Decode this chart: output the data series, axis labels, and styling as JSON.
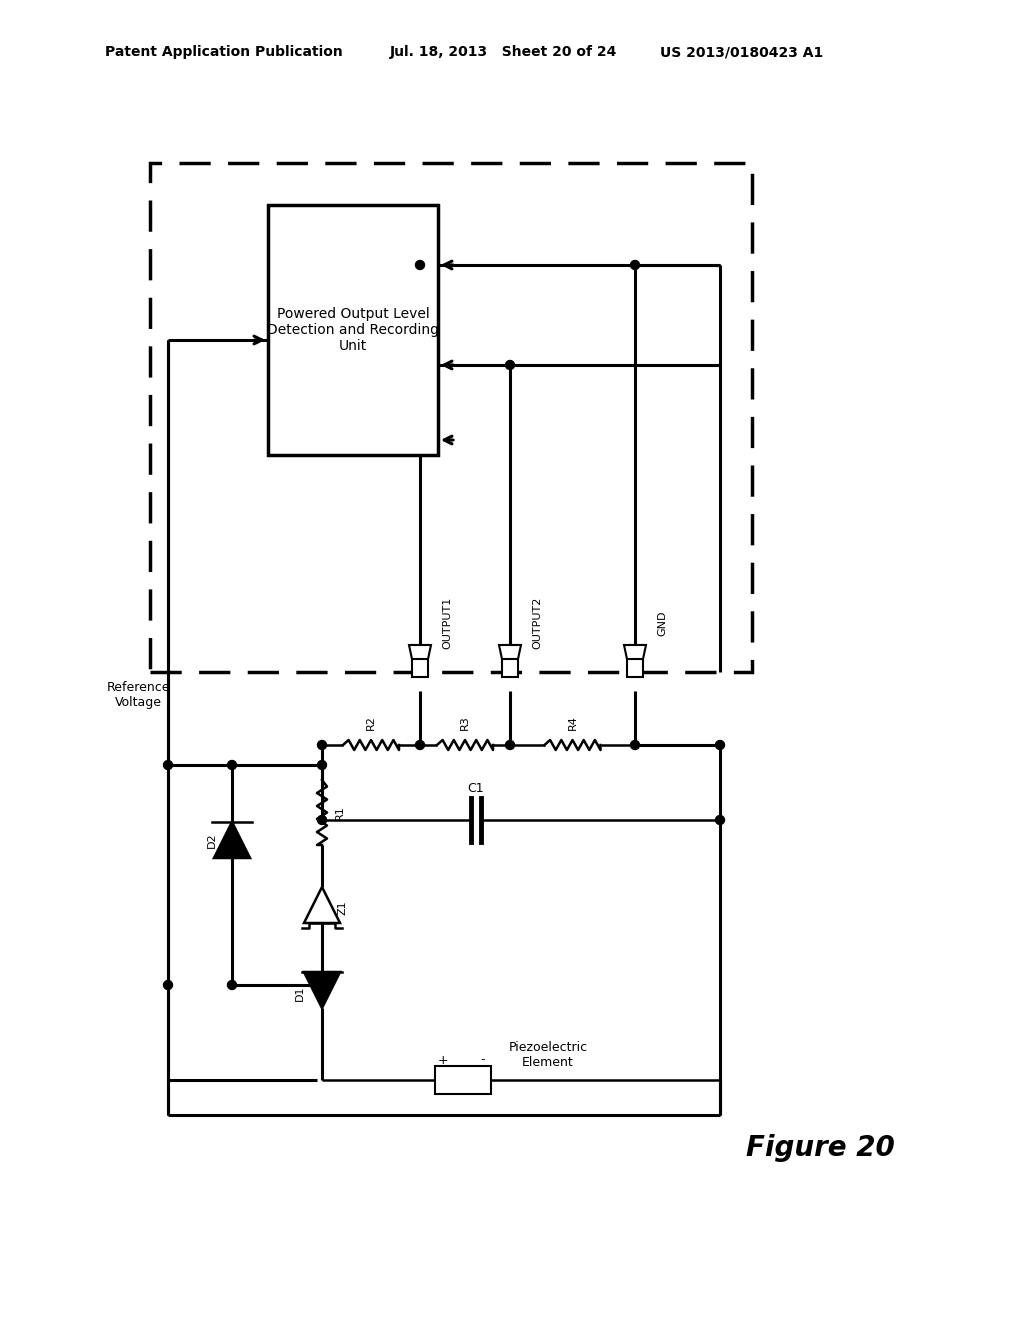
{
  "title": "Figure 20",
  "header_left": "Patent Application Publication",
  "header_mid": "Jul. 18, 2013   Sheet 20 of 24",
  "header_right": "US 2013/0180423 A1",
  "bg_color": "#ffffff",
  "box_label": "Powered Output Level\nDetection and Recording\nUnit",
  "ref_voltage_label": "Reference\nVoltage",
  "output1_label": "OUTPUT1",
  "output2_label": "OUTPUT2",
  "gnd_label": "GND",
  "r1_label": "R1",
  "r2_label": "R2",
  "r3_label": "R3",
  "r4_label": "R4",
  "c1_label": "C1",
  "d1_label": "D1",
  "d2_label": "D2",
  "z1_label": "Z1",
  "piezo_label": "Piezoelectric\nElement",
  "lw": 1.8,
  "lw_thick": 2.2,
  "header_fontsize": 10,
  "label_fontsize": 9,
  "small_fontsize": 8,
  "title_fontsize": 20
}
